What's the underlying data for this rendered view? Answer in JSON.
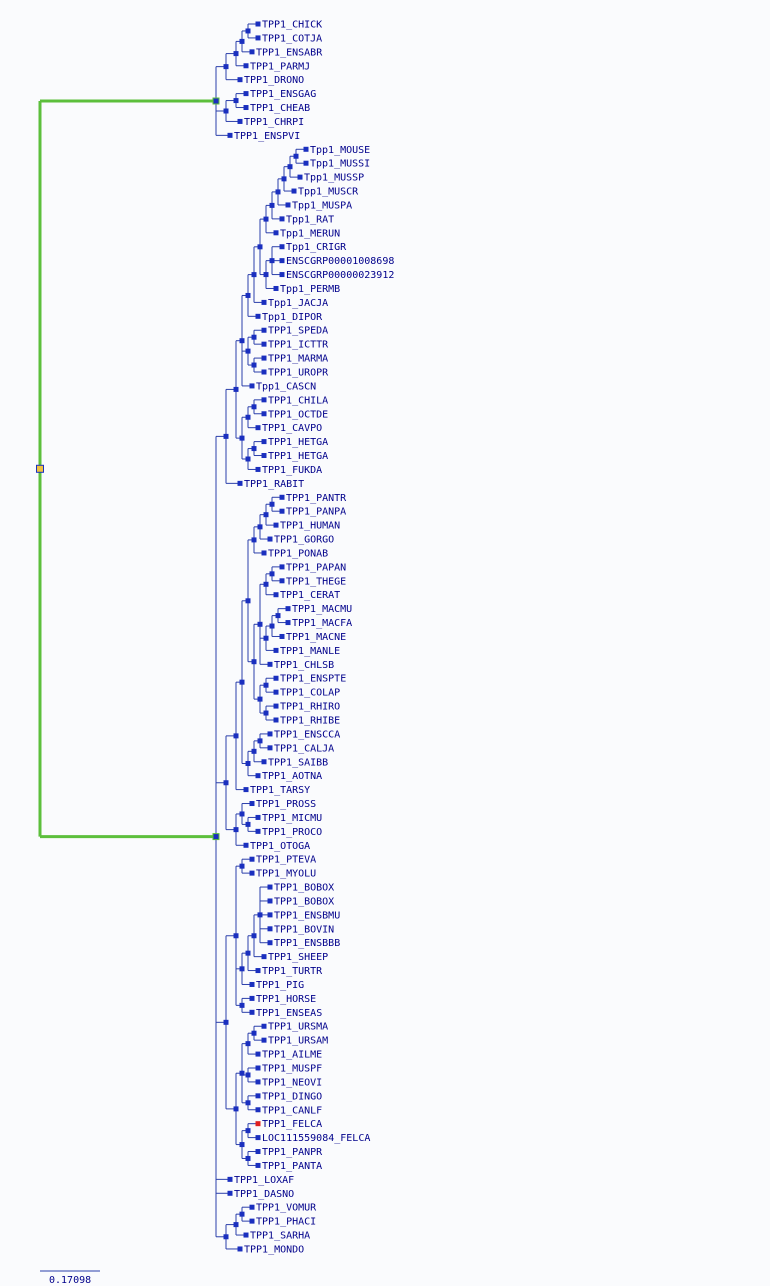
{
  "colors": {
    "branch": "#2b3faa",
    "highlight_branch": "#5cbf3c",
    "node": "#1a2fbf",
    "root_node_fill": "#f0c040",
    "root_node_border": "#1a2fbf",
    "marked_leaf": "#e02020",
    "label": "#00008b",
    "background": "#fafbfd"
  },
  "scale_bar": {
    "label": "0.17098"
  },
  "tree": {
    "children": [
      {
        "highlight": true,
        "children": [
          {
            "children": [
              {
                "children": [
                  {
                    "children": [
                      {
                        "children": [
                          {
                            "name": "TPP1_CHICK"
                          },
                          {
                            "name": "TPP1_COTJA"
                          }
                        ]
                      },
                      {
                        "name": "TPP1_ENSABR"
                      }
                    ]
                  },
                  {
                    "name": "TPP1_PARMJ"
                  }
                ]
              },
              {
                "name": "TPP1_DRONO"
              }
            ]
          },
          {
            "children": [
              {
                "children": [
                  {
                    "name": "TPP1_ENSGAG"
                  },
                  {
                    "name": "TPP1_CHEAB"
                  }
                ]
              },
              {
                "name": "TPP1_CHRPI"
              }
            ]
          },
          {
            "name": "TPP1_ENSPVI"
          }
        ]
      },
      {
        "highlight": true,
        "children": [
          {
            "children": [
              {
                "children": [
                  {
                    "children": [
                      {
                        "children": [
                          {
                            "children": [
                              {
                                "children": [
                                  {
                                    "children": [
                                      {
                                        "children": [
                                          {
                                            "children": [
                                              {
                                                "children": [
                                                  {
                                                    "children": [
                                                      {
                                                        "children": [
                                                          {
                                                            "name": "Tpp1_MOUSE"
                                                          },
                                                          {
                                                            "name": "Tpp1_MUSSI"
                                                          }
                                                        ]
                                                      },
                                                      {
                                                        "name": "Tpp1_MUSSP"
                                                      }
                                                    ]
                                                  },
                                                  {
                                                    "name": "Tpp1_MUSCR"
                                                  }
                                                ]
                                              },
                                              {
                                                "name": "Tpp1_MUSPA"
                                              }
                                            ]
                                          },
                                          {
                                            "name": "Tpp1_RAT"
                                          }
                                        ]
                                      },
                                      {
                                        "name": "Tpp1_MERUN"
                                      }
                                    ]
                                  },
                                  {
                                    "children": [
                                      {
                                        "children": [
                                          {
                                            "name": "Tpp1_CRIGR"
                                          },
                                          {
                                            "name": "ENSCGRP00001008698"
                                          },
                                          {
                                            "name": "ENSCGRP00000023912"
                                          }
                                        ]
                                      },
                                      {
                                        "name": "Tpp1_PERMB"
                                      }
                                    ]
                                  }
                                ]
                              },
                              {
                                "name": "Tpp1_JACJA"
                              }
                            ]
                          },
                          {
                            "name": "Tpp1_DIPOR"
                          }
                        ]
                      },
                      {
                        "children": [
                          {
                            "children": [
                              {
                                "name": "TPP1_SPEDA"
                              },
                              {
                                "name": "TPP1_ICTTR"
                              }
                            ]
                          },
                          {
                            "children": [
                              {
                                "name": "TPP1_MARMA"
                              },
                              {
                                "name": "TPP1_UROPR"
                              }
                            ]
                          }
                        ]
                      },
                      {
                        "name": "Tpp1_CASCN"
                      }
                    ]
                  },
                  {
                    "children": [
                      {
                        "children": [
                          {
                            "children": [
                              {
                                "name": "TPP1_CHILA"
                              },
                              {
                                "name": "TPP1_OCTDE"
                              }
                            ]
                          },
                          {
                            "name": "TPP1_CAVPO"
                          }
                        ]
                      },
                      {
                        "children": [
                          {
                            "children": [
                              {
                                "name": "TPP1_HETGA"
                              },
                              {
                                "name": "TPP1_HETGA"
                              }
                            ]
                          },
                          {
                            "name": "TPP1_FUKDA"
                          }
                        ]
                      }
                    ]
                  }
                ]
              },
              {
                "name": "TPP1_RABIT"
              }
            ]
          },
          {
            "children": [
              {
                "children": [
                  {
                    "children": [
                      {
                        "children": [
                          {
                            "children": [
                              {
                                "children": [
                                  {
                                    "children": [
                                      {
                                        "children": [
                                          {
                                            "name": "TPP1_PANTR"
                                          },
                                          {
                                            "name": "TPP1_PANPA"
                                          }
                                        ]
                                      },
                                      {
                                        "name": "TPP1_HUMAN"
                                      }
                                    ]
                                  },
                                  {
                                    "name": "TPP1_GORGO"
                                  }
                                ]
                              },
                              {
                                "name": "TPP1_PONAB"
                              }
                            ]
                          },
                          {
                            "children": [
                              {
                                "children": [
                                  {
                                    "children": [
                                      {
                                        "children": [
                                          {
                                            "name": "TPP1_PAPAN"
                                          },
                                          {
                                            "name": "TPP1_THEGE"
                                          }
                                        ]
                                      },
                                      {
                                        "name": "TPP1_CERAT"
                                      }
                                    ]
                                  },
                                  {
                                    "children": [
                                      {
                                        "children": [
                                          {
                                            "children": [
                                              {
                                                "name": "TPP1_MACMU"
                                              },
                                              {
                                                "name": "TPP1_MACFA"
                                              }
                                            ]
                                          },
                                          {
                                            "name": "TPP1_MACNE"
                                          }
                                        ]
                                      },
                                      {
                                        "name": "TPP1_MANLE"
                                      }
                                    ]
                                  },
                                  {
                                    "name": "TPP1_CHLSB"
                                  }
                                ]
                              },
                              {
                                "children": [
                                  {
                                    "children": [
                                      {
                                        "name": "TPP1_ENSPTE"
                                      },
                                      {
                                        "name": "TPP1_COLAP"
                                      }
                                    ]
                                  },
                                  {
                                    "children": [
                                      {
                                        "name": "TPP1_RHIRO"
                                      },
                                      {
                                        "name": "TPP1_RHIBE"
                                      }
                                    ]
                                  }
                                ]
                              }
                            ]
                          }
                        ]
                      },
                      {
                        "children": [
                          {
                            "children": [
                              {
                                "children": [
                                  {
                                    "name": "TPP1_ENSCCA"
                                  },
                                  {
                                    "name": "TPP1_CALJA"
                                  }
                                ]
                              },
                              {
                                "name": "TPP1_SAIBB"
                              }
                            ]
                          },
                          {
                            "name": "TPP1_AOTNA"
                          }
                        ]
                      }
                    ]
                  },
                  {
                    "name": "TPP1_TARSY"
                  }
                ]
              },
              {
                "children": [
                  {
                    "children": [
                      {
                        "name": "TPP1_PROSS"
                      },
                      {
                        "children": [
                          {
                            "name": "TPP1_MICMU"
                          },
                          {
                            "name": "TPP1_PROCO"
                          }
                        ]
                      }
                    ]
                  },
                  {
                    "name": "TPP1_OTOGA"
                  }
                ]
              }
            ]
          },
          {
            "children": [
              {
                "children": [
                  {
                    "children": [
                      {
                        "name": "TPP1_PTEVA"
                      },
                      {
                        "name": "TPP1_MYOLU"
                      }
                    ]
                  },
                  {
                    "children": [
                      {
                        "children": [
                          {
                            "children": [
                              {
                                "children": [
                                  {
                                    "name": "TPP1_BOBOX"
                                  },
                                  {
                                    "name": "TPP1_BOBOX"
                                  },
                                  {
                                    "name": "TPP1_ENSBMU"
                                  },
                                  {
                                    "name": "TPP1_BOVIN"
                                  },
                                  {
                                    "name": "TPP1_ENSBBB"
                                  }
                                ]
                              },
                              {
                                "name": "TPP1_SHEEP"
                              }
                            ]
                          },
                          {
                            "name": "TPP1_TURTR"
                          }
                        ]
                      },
                      {
                        "name": "TPP1_PIG"
                      }
                    ]
                  },
                  {
                    "children": [
                      {
                        "name": "TPP1_HORSE"
                      },
                      {
                        "name": "TPP1_ENSEAS"
                      }
                    ]
                  }
                ]
              },
              {
                "children": [
                  {
                    "children": [
                      {
                        "children": [
                          {
                            "children": [
                              {
                                "name": "TPP1_URSMA"
                              },
                              {
                                "name": "TPP1_URSAM"
                              }
                            ]
                          },
                          {
                            "name": "TPP1_AILME"
                          }
                        ]
                      },
                      {
                        "children": [
                          {
                            "name": "TPP1_MUSPF"
                          },
                          {
                            "name": "TPP1_NEOVI"
                          }
                        ]
                      },
                      {
                        "children": [
                          {
                            "name": "TPP1_DINGO"
                          },
                          {
                            "name": "TPP1_CANLF"
                          }
                        ]
                      }
                    ]
                  },
                  {
                    "children": [
                      {
                        "children": [
                          {
                            "name": "TPP1_FELCA",
                            "marked": true
                          },
                          {
                            "name": "LOC111559084_FELCA"
                          }
                        ]
                      },
                      {
                        "children": [
                          {
                            "name": "TPP1_PANPR"
                          },
                          {
                            "name": "TPP1_PANTA"
                          }
                        ]
                      }
                    ]
                  }
                ]
              }
            ]
          },
          {
            "name": "TPP1_LOXAF"
          },
          {
            "name": "TPP1_DASNO"
          },
          {
            "children": [
              {
                "children": [
                  {
                    "children": [
                      {
                        "name": "TPP1_VOMUR"
                      },
                      {
                        "name": "TPP1_PHACI"
                      }
                    ]
                  },
                  {
                    "name": "TPP1_SARHA"
                  }
                ]
              },
              {
                "name": "TPP1_MONDO"
              }
            ]
          }
        ]
      }
    ]
  }
}
